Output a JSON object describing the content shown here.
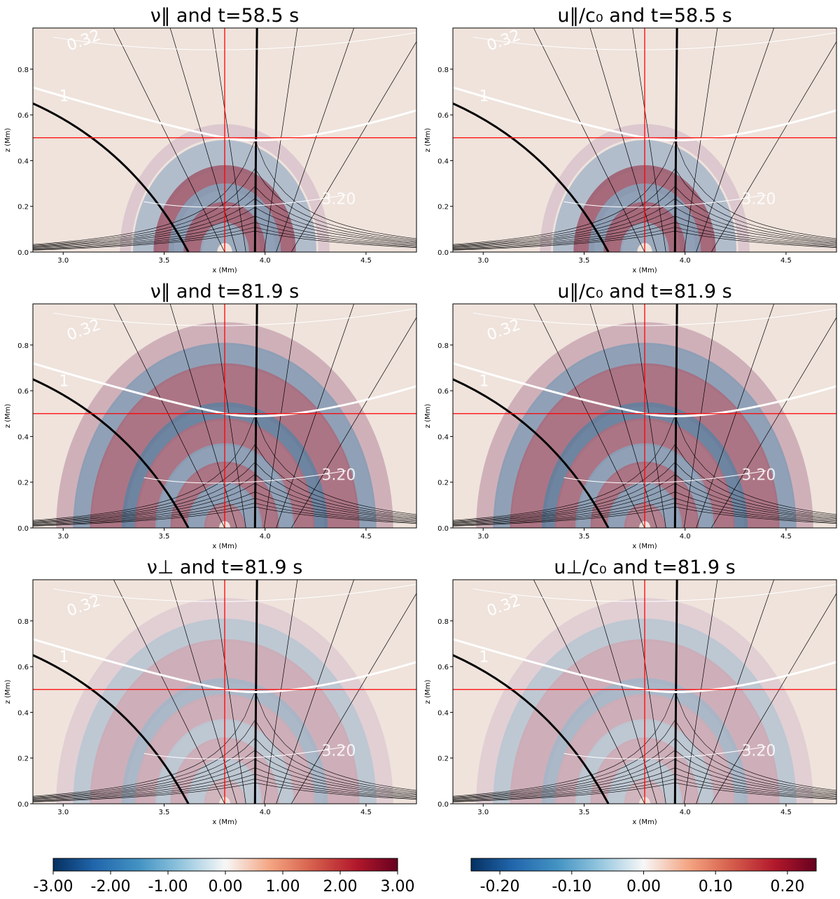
{
  "chart_data": {
    "type": "heatmap",
    "panels": [
      {
        "title": "ν‖ and t=58.5 s",
        "var": "nu_par",
        "time_s": 58.5,
        "colorbar": "left"
      },
      {
        "title": "u‖/c₀ and t=58.5 s",
        "var": "u_par",
        "time_s": 58.5,
        "colorbar": "right"
      },
      {
        "title": "ν‖ and t=81.9 s",
        "var": "nu_par",
        "time_s": 81.9,
        "colorbar": "left"
      },
      {
        "title": "u‖/c₀ and t=81.9 s",
        "var": "u_par",
        "time_s": 81.9,
        "colorbar": "right"
      },
      {
        "title": "ν⊥ and t=81.9 s",
        "var": "nu_perp",
        "time_s": 81.9,
        "colorbar": "left"
      },
      {
        "title": "u⊥/c₀ and t=81.9 s",
        "var": "u_perp",
        "time_s": 81.9,
        "colorbar": "right"
      }
    ],
    "xlabel": "x (Mm)",
    "ylabel": "z (Mm)",
    "xlim": [
      2.85,
      4.75
    ],
    "ylim": [
      0.0,
      0.98
    ],
    "xticks": [
      "3.0",
      "3.5",
      "4.0",
      "4.5"
    ],
    "yticks": [
      "0.0",
      "0.2",
      "0.4",
      "0.6",
      "0.8"
    ],
    "crosshair": {
      "x": 3.8,
      "z": 0.5
    },
    "contour_labels": [
      "0.32",
      "1",
      "3.20"
    ],
    "colormap": {
      "low": "#053061",
      "mid": "#f7f7f7",
      "high": "#67001f"
    },
    "colorbars": [
      {
        "id": "left",
        "min": -3.0,
        "max": 3.0,
        "ticks": [
          "-3.00",
          "-2.00",
          "-1.00",
          "0.00",
          "1.00",
          "2.00",
          "3.00"
        ]
      },
      {
        "id": "right",
        "min": -0.24,
        "max": 0.24,
        "ticks": [
          "-0.20",
          "-0.10",
          "0.00",
          "0.10",
          "0.20"
        ]
      }
    ]
  }
}
